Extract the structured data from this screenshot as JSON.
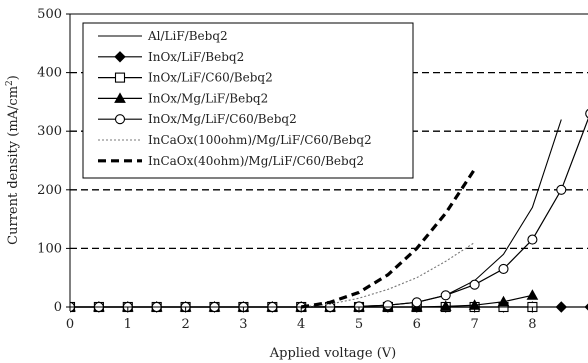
{
  "chart_data": {
    "type": "line",
    "xlabel": "Applied voltage (V)",
    "ylabel": "Current density (mA/cm",
    "ylabel_sup": "2",
    "ylabel_end": ")",
    "xlim": [
      0,
      9
    ],
    "ylim": [
      0,
      500
    ],
    "x_ticks": [
      "0",
      "1",
      "2",
      "3",
      "4",
      "5",
      "6",
      "7",
      "8",
      "9"
    ],
    "y_ticks": [
      "0",
      "100",
      "200",
      "300",
      "400",
      "500"
    ],
    "grid": "horizontal dashed",
    "legend_position": "top-left",
    "series": [
      {
        "name": "Al/LiF/Bebq2",
        "style": "solid-thin",
        "marker": "none",
        "color": "#000000",
        "points": [
          [
            0,
            0
          ],
          [
            1,
            0
          ],
          [
            2,
            0
          ],
          [
            3,
            0
          ],
          [
            4,
            0
          ],
          [
            4.5,
            0.5
          ],
          [
            5,
            1
          ],
          [
            5.5,
            3
          ],
          [
            6,
            8
          ],
          [
            6.5,
            20
          ],
          [
            7,
            45
          ],
          [
            7.5,
            90
          ],
          [
            8,
            170
          ],
          [
            8.5,
            320
          ]
        ]
      },
      {
        "name": "InOx/LiF/Bebq2",
        "style": "solid",
        "marker": "diamond",
        "color": "#000000",
        "points": [
          [
            0,
            0
          ],
          [
            0.5,
            0
          ],
          [
            1,
            0
          ],
          [
            1.5,
            0
          ],
          [
            2,
            0
          ],
          [
            2.5,
            0
          ],
          [
            3,
            0
          ],
          [
            3.5,
            0
          ],
          [
            4,
            0
          ],
          [
            4.5,
            0
          ],
          [
            5,
            0
          ],
          [
            5.5,
            0
          ],
          [
            6,
            0
          ],
          [
            6.5,
            0
          ],
          [
            7,
            0
          ],
          [
            7.5,
            0
          ],
          [
            8,
            0
          ],
          [
            8.5,
            0
          ],
          [
            9,
            0
          ]
        ]
      },
      {
        "name": "InOx/LiF/C60/Bebq2",
        "style": "solid",
        "marker": "square-open",
        "color": "#000000",
        "points": [
          [
            0,
            0
          ],
          [
            0.5,
            0
          ],
          [
            1,
            0
          ],
          [
            1.5,
            0
          ],
          [
            2,
            0
          ],
          [
            2.5,
            0
          ],
          [
            3,
            0
          ],
          [
            3.5,
            0
          ],
          [
            4,
            0
          ],
          [
            4.5,
            0
          ],
          [
            5,
            0
          ],
          [
            5.5,
            0
          ],
          [
            6,
            0
          ],
          [
            6.5,
            0
          ],
          [
            7,
            0
          ],
          [
            7.5,
            0
          ],
          [
            8,
            0
          ]
        ]
      },
      {
        "name": "InOx/Mg/LiF/Bebq2",
        "style": "solid",
        "marker": "triangle",
        "color": "#000000",
        "points": [
          [
            0,
            0
          ],
          [
            0.5,
            0
          ],
          [
            1,
            0
          ],
          [
            1.5,
            0
          ],
          [
            2,
            0
          ],
          [
            2.5,
            0
          ],
          [
            3,
            0
          ],
          [
            3.5,
            0
          ],
          [
            4,
            0
          ],
          [
            4.5,
            0
          ],
          [
            5,
            0
          ],
          [
            5.5,
            0
          ],
          [
            6,
            0
          ],
          [
            6.5,
            1
          ],
          [
            7,
            3
          ],
          [
            7.5,
            9
          ],
          [
            8,
            20
          ]
        ]
      },
      {
        "name": "InOx/Mg/LiF/C60/Bebq2",
        "style": "solid",
        "marker": "circle-open",
        "color": "#000000",
        "points": [
          [
            0,
            0
          ],
          [
            0.5,
            0
          ],
          [
            1,
            0
          ],
          [
            1.5,
            0
          ],
          [
            2,
            0
          ],
          [
            2.5,
            0
          ],
          [
            3,
            0
          ],
          [
            3.5,
            0
          ],
          [
            4,
            0
          ],
          [
            4.5,
            0
          ],
          [
            5,
            1
          ],
          [
            5.5,
            3
          ],
          [
            6,
            8
          ],
          [
            6.5,
            20
          ],
          [
            7,
            38
          ],
          [
            7.5,
            65
          ],
          [
            8,
            115
          ],
          [
            8.5,
            200
          ],
          [
            9,
            330
          ]
        ]
      },
      {
        "name": "InCaOx(100ohm)/Mg/LiF/C60/Bebq2",
        "style": "dotted",
        "marker": "none",
        "color": "#777777",
        "points": [
          [
            4,
            0
          ],
          [
            4.5,
            5
          ],
          [
            5,
            15
          ],
          [
            5.5,
            30
          ],
          [
            6,
            50
          ],
          [
            6.5,
            78
          ],
          [
            7,
            110
          ]
        ]
      },
      {
        "name": "InCaOx(40ohm)/Mg/LiF/C60/Bebq2",
        "style": "dashed-thick",
        "marker": "none",
        "color": "#000000",
        "points": [
          [
            4,
            0
          ],
          [
            4.5,
            8
          ],
          [
            5,
            25
          ],
          [
            5.5,
            55
          ],
          [
            6,
            100
          ],
          [
            6.5,
            160
          ],
          [
            7,
            235
          ]
        ]
      }
    ]
  }
}
